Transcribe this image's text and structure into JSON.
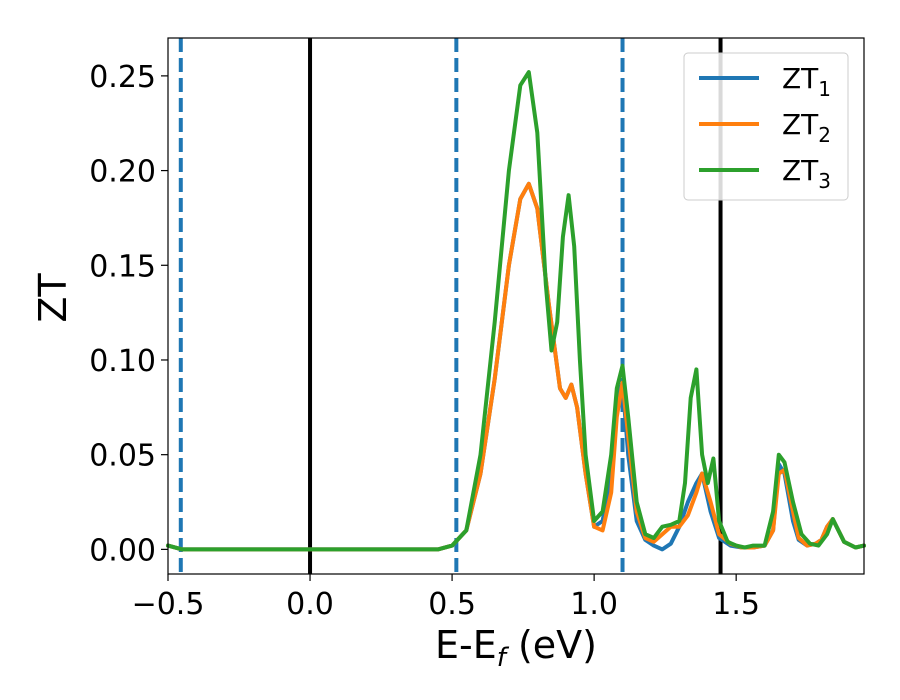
{
  "chart_data": {
    "type": "line",
    "xlabel": "E-E",
    "xlabel_subscript": "f",
    "xlabel_unit": "(eV)",
    "ylabel": "ZT",
    "xlim": [
      -0.5,
      1.95
    ],
    "ylim": [
      -0.013,
      0.27
    ],
    "x_ticks": [
      -0.5,
      0.0,
      0.5,
      1.0,
      1.5
    ],
    "x_tick_labels": [
      "−0.5",
      "0.0",
      "0.5",
      "1.0",
      "1.5"
    ],
    "y_ticks": [
      0.0,
      0.05,
      0.1,
      0.15,
      0.2,
      0.25
    ],
    "y_tick_labels": [
      "0.00",
      "0.05",
      "0.10",
      "0.15",
      "0.20",
      "0.25"
    ],
    "grid": false,
    "legend_position": "top-right",
    "vertical_lines": [
      {
        "x": -0.455,
        "style": "dashed",
        "color": "#1f77b4"
      },
      {
        "x": 0.0,
        "style": "solid",
        "color": "#000000"
      },
      {
        "x": 0.515,
        "style": "dashed",
        "color": "#1f77b4"
      },
      {
        "x": 1.1,
        "style": "dashed",
        "color": "#1f77b4"
      },
      {
        "x": 1.445,
        "style": "solid",
        "color": "#000000"
      }
    ],
    "series": [
      {
        "name": "ZT",
        "subscript": "1",
        "color": "#1f77b4",
        "x": [
          -0.5,
          -0.45,
          -0.3,
          0.0,
          0.3,
          0.45,
          0.5,
          0.55,
          0.6,
          0.65,
          0.7,
          0.74,
          0.77,
          0.8,
          0.84,
          0.88,
          0.9,
          0.92,
          0.94,
          0.97,
          1.0,
          1.03,
          1.06,
          1.08,
          1.1,
          1.12,
          1.15,
          1.18,
          1.21,
          1.24,
          1.27,
          1.3,
          1.33,
          1.36,
          1.38,
          1.41,
          1.44,
          1.48,
          1.52,
          1.56,
          1.6,
          1.63,
          1.65,
          1.67,
          1.7,
          1.72,
          1.75,
          1.78,
          1.8,
          1.82,
          1.84,
          1.86,
          1.88,
          1.92,
          1.95
        ],
        "y": [
          0.002,
          0.0,
          0.0,
          0.0,
          0.0,
          0.0,
          0.002,
          0.01,
          0.04,
          0.09,
          0.15,
          0.185,
          0.193,
          0.18,
          0.13,
          0.085,
          0.08,
          0.087,
          0.075,
          0.04,
          0.012,
          0.015,
          0.04,
          0.08,
          0.088,
          0.05,
          0.015,
          0.005,
          0.002,
          0.0,
          0.003,
          0.012,
          0.025,
          0.035,
          0.04,
          0.02,
          0.006,
          0.002,
          0.001,
          0.001,
          0.002,
          0.01,
          0.045,
          0.04,
          0.015,
          0.005,
          0.002,
          0.003,
          0.005,
          0.012,
          0.016,
          0.01,
          0.004,
          0.001,
          0.002
        ]
      },
      {
        "name": "ZT",
        "subscript": "2",
        "color": "#ff7f0e",
        "x": [
          -0.5,
          -0.45,
          -0.3,
          0.0,
          0.3,
          0.45,
          0.5,
          0.55,
          0.6,
          0.65,
          0.7,
          0.74,
          0.77,
          0.8,
          0.84,
          0.88,
          0.9,
          0.92,
          0.94,
          0.97,
          1.0,
          1.03,
          1.06,
          1.08,
          1.1,
          1.12,
          1.15,
          1.18,
          1.21,
          1.24,
          1.27,
          1.3,
          1.33,
          1.36,
          1.38,
          1.41,
          1.44,
          1.48,
          1.52,
          1.56,
          1.6,
          1.63,
          1.65,
          1.67,
          1.7,
          1.72,
          1.75,
          1.78,
          1.8,
          1.82,
          1.84,
          1.86,
          1.88,
          1.92,
          1.95
        ],
        "y": [
          0.002,
          0.0,
          0.0,
          0.0,
          0.0,
          0.0,
          0.002,
          0.01,
          0.04,
          0.09,
          0.15,
          0.185,
          0.193,
          0.18,
          0.13,
          0.085,
          0.08,
          0.087,
          0.075,
          0.04,
          0.012,
          0.01,
          0.03,
          0.07,
          0.088,
          0.06,
          0.02,
          0.006,
          0.004,
          0.008,
          0.012,
          0.012,
          0.018,
          0.03,
          0.04,
          0.025,
          0.008,
          0.003,
          0.001,
          0.001,
          0.002,
          0.01,
          0.04,
          0.042,
          0.02,
          0.006,
          0.002,
          0.003,
          0.005,
          0.012,
          0.016,
          0.01,
          0.004,
          0.001,
          0.002
        ]
      },
      {
        "name": "ZT",
        "subscript": "3",
        "color": "#2ca02c",
        "x": [
          -0.5,
          -0.45,
          -0.3,
          0.0,
          0.3,
          0.45,
          0.5,
          0.55,
          0.6,
          0.65,
          0.7,
          0.74,
          0.77,
          0.8,
          0.83,
          0.85,
          0.87,
          0.89,
          0.91,
          0.93,
          0.95,
          0.97,
          1.0,
          1.03,
          1.06,
          1.08,
          1.1,
          1.12,
          1.15,
          1.18,
          1.21,
          1.24,
          1.27,
          1.3,
          1.32,
          1.34,
          1.36,
          1.38,
          1.4,
          1.42,
          1.44,
          1.47,
          1.5,
          1.53,
          1.56,
          1.6,
          1.63,
          1.65,
          1.67,
          1.7,
          1.73,
          1.76,
          1.79,
          1.82,
          1.84,
          1.86,
          1.88,
          1.92,
          1.95
        ],
        "y": [
          0.002,
          0.0,
          0.0,
          0.0,
          0.0,
          0.0,
          0.002,
          0.01,
          0.05,
          0.12,
          0.2,
          0.245,
          0.252,
          0.22,
          0.14,
          0.105,
          0.12,
          0.165,
          0.187,
          0.16,
          0.1,
          0.05,
          0.015,
          0.02,
          0.05,
          0.085,
          0.097,
          0.07,
          0.025,
          0.008,
          0.006,
          0.012,
          0.013,
          0.015,
          0.035,
          0.08,
          0.095,
          0.05,
          0.035,
          0.048,
          0.015,
          0.004,
          0.002,
          0.001,
          0.002,
          0.002,
          0.02,
          0.05,
          0.046,
          0.025,
          0.008,
          0.003,
          0.002,
          0.008,
          0.016,
          0.01,
          0.004,
          0.001,
          0.002
        ]
      }
    ]
  }
}
